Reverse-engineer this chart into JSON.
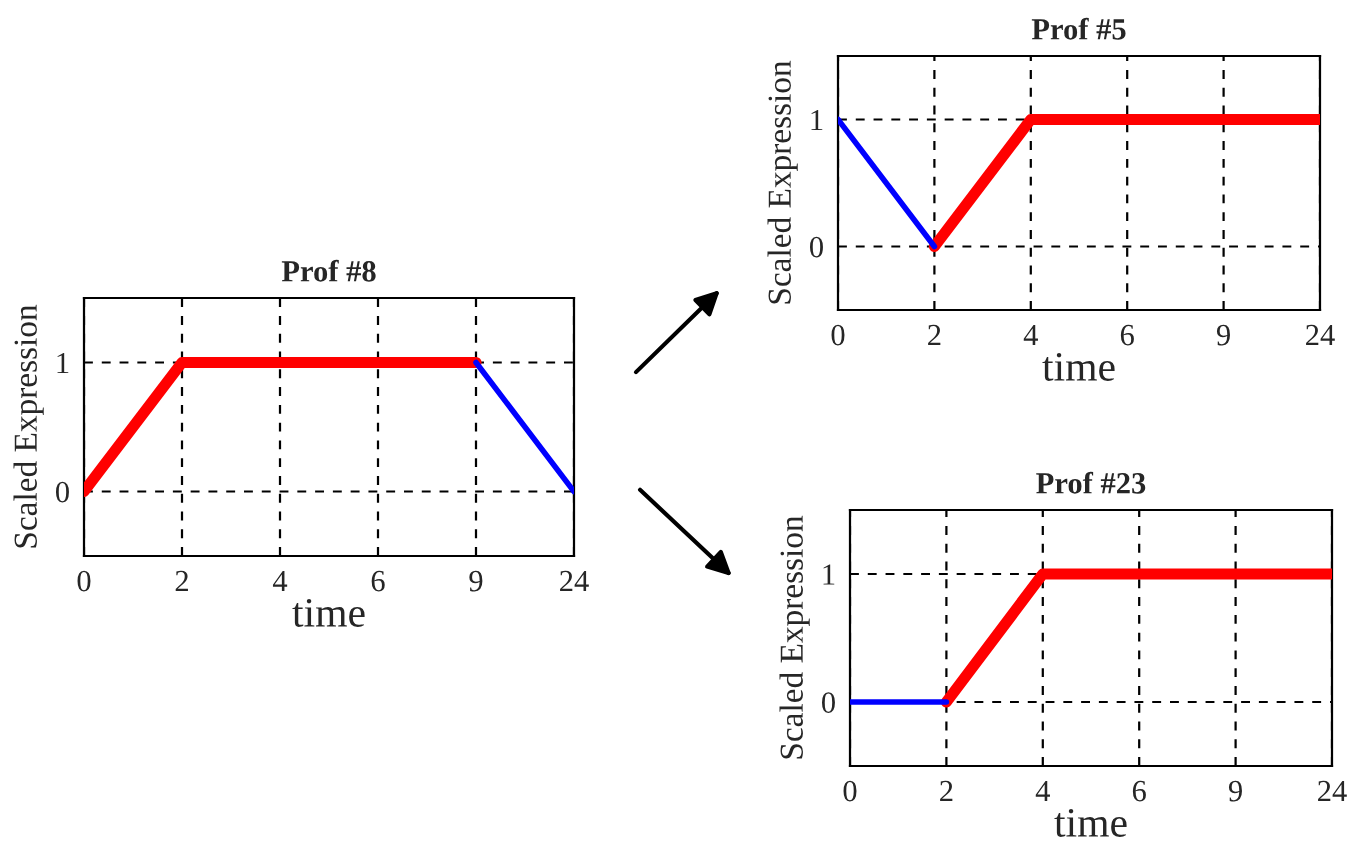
{
  "chart_data": [
    {
      "type": "line",
      "title": "Prof #8",
      "xlabel": "time",
      "ylabel": "Scaled Expression",
      "categories": [
        "0",
        "2",
        "4",
        "6",
        "9",
        "24"
      ],
      "ylim": [
        -0.5,
        1.5
      ],
      "yticks": [
        0,
        1
      ],
      "grid": true,
      "legend": false,
      "series": [
        {
          "color": "#ff0000",
          "values": [
            0,
            1,
            1,
            1,
            1,
            null
          ]
        },
        {
          "color": "#0000ff",
          "values": [
            null,
            null,
            null,
            null,
            1,
            0
          ]
        }
      ]
    },
    {
      "type": "line",
      "title": "Prof #5",
      "xlabel": "time",
      "ylabel": "Scaled Expression",
      "categories": [
        "0",
        "2",
        "4",
        "6",
        "9",
        "24"
      ],
      "ylim": [
        -0.5,
        1.5
      ],
      "yticks": [
        0,
        1
      ],
      "grid": true,
      "legend": false,
      "series": [
        {
          "color": "#ff0000",
          "values": [
            null,
            0,
            1,
            1,
            1,
            1
          ]
        },
        {
          "color": "#0000ff",
          "values": [
            1,
            0,
            null,
            null,
            null,
            null
          ]
        }
      ]
    },
    {
      "type": "line",
      "title": "Prof #23",
      "xlabel": "time",
      "ylabel": "Scaled Expression",
      "categories": [
        "0",
        "2",
        "4",
        "6",
        "9",
        "24"
      ],
      "ylim": [
        -0.5,
        1.5
      ],
      "yticks": [
        0,
        1
      ],
      "grid": true,
      "legend": false,
      "series": [
        {
          "color": "#ff0000",
          "values": [
            null,
            0,
            1,
            1,
            1,
            1
          ]
        },
        {
          "color": "#0000ff",
          "values": [
            0,
            0,
            null,
            null,
            null,
            null
          ]
        }
      ]
    }
  ]
}
